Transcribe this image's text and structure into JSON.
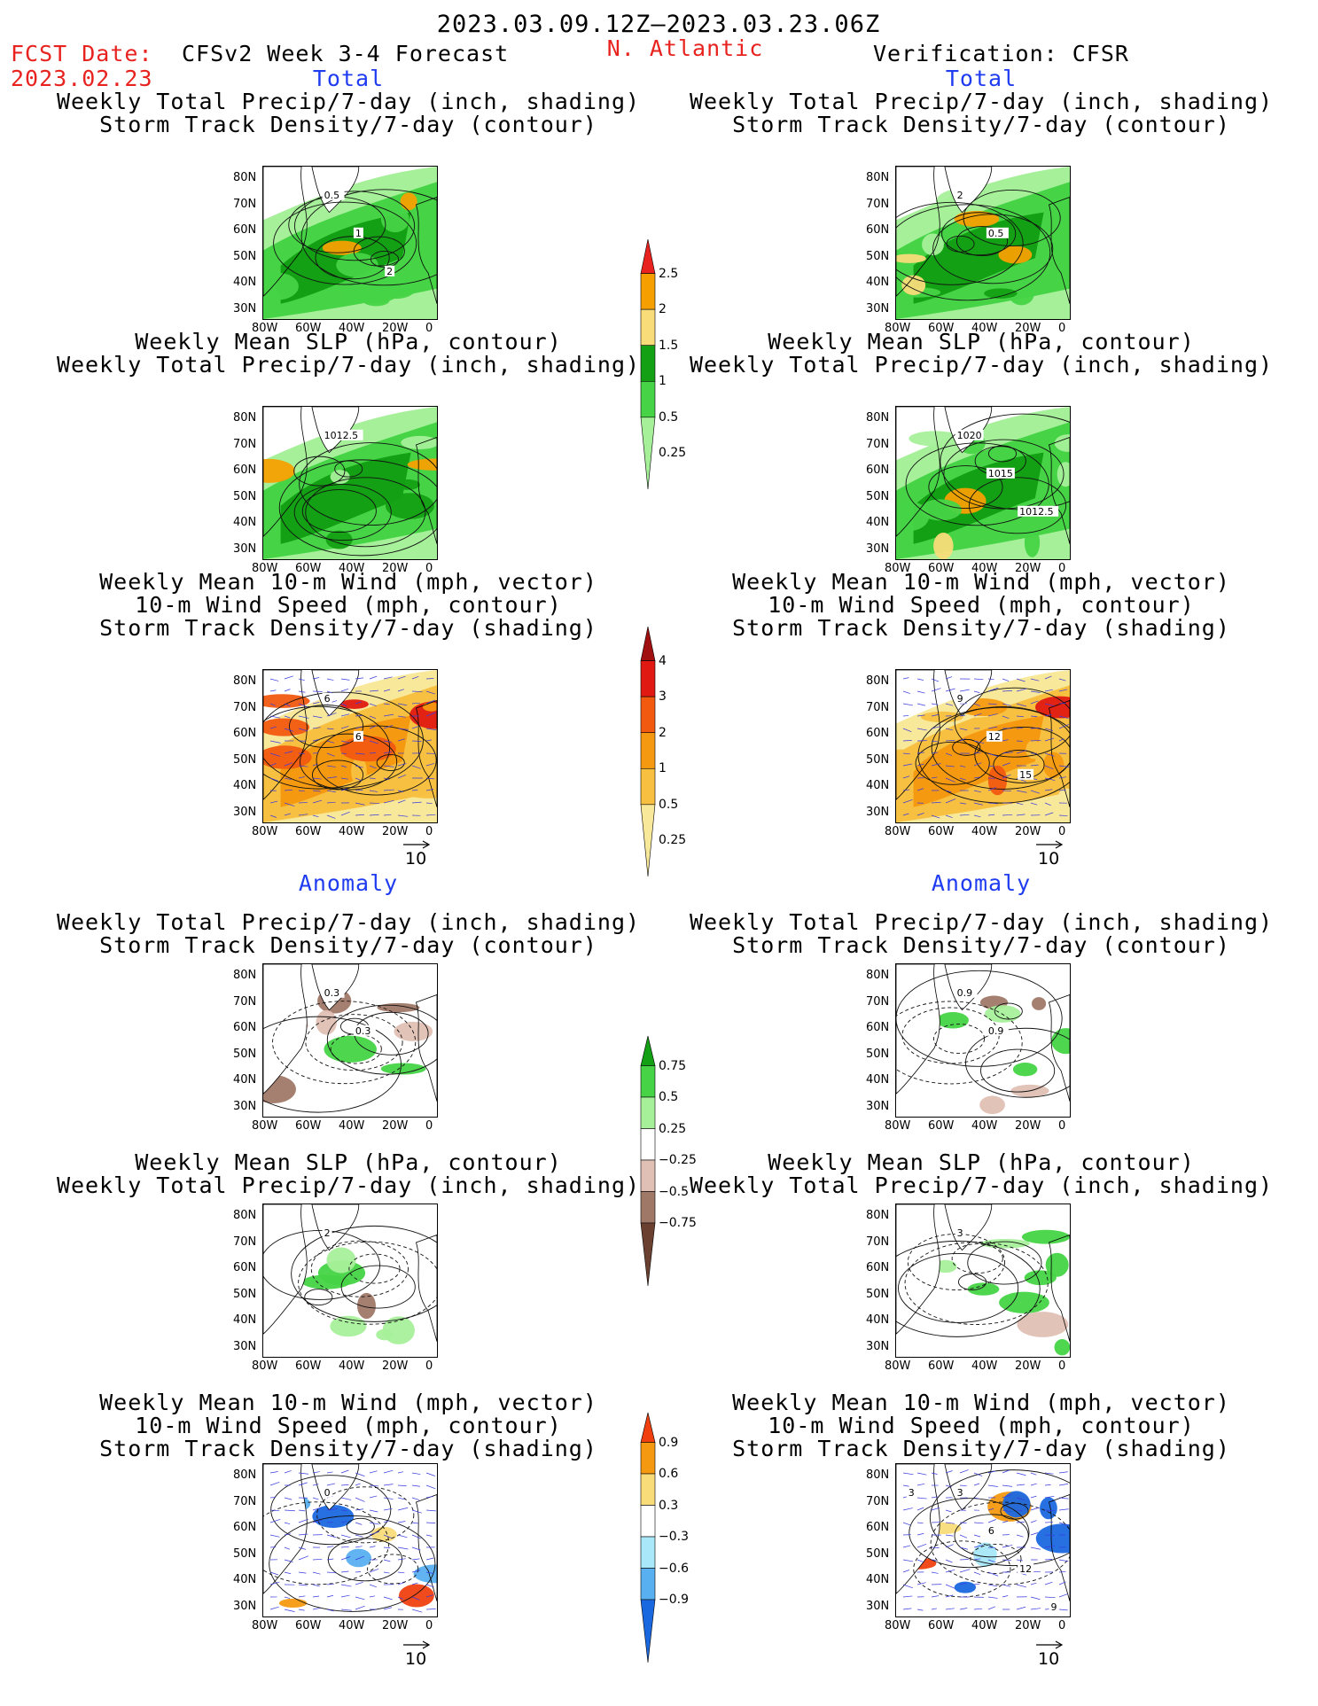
{
  "header": {
    "date_range": "2023.03.09.12Z–2023.03.23.06Z",
    "fcst_label": "FCST Date:",
    "fcst_date": "2023.02.23",
    "model": "CFSv2 Week 3-4 Forecast",
    "region": "N. Atlantic",
    "verification": "Verification: CFSR"
  },
  "sections": {
    "total": "Total",
    "anomaly": "Anomaly"
  },
  "titles": {
    "precip_storm": [
      "Weekly Total Precip/7-day (inch, shading)",
      "Storm Track Density/7-day (contour)"
    ],
    "slp_precip": [
      "Weekly Mean SLP (hPa, contour)",
      "Weekly Total Precip/7-day (inch, shading)"
    ],
    "wind_storm": [
      "Weekly Mean 10-m Wind (mph, vector)",
      "10-m Wind Speed (mph, contour)",
      "Storm Track Density/7-day (shading)"
    ]
  },
  "axes": {
    "lat_ticks": [
      "80N",
      "70N",
      "60N",
      "50N",
      "40N",
      "30N"
    ],
    "lon_ticks": [
      "80W",
      "60W",
      "40W",
      "20W",
      "0"
    ]
  },
  "vector_ref": "10",
  "colorbars": {
    "precip_total": {
      "labels": [
        "2.5",
        "2",
        "1.5",
        "1",
        "0.5",
        "0.25"
      ],
      "colors": [
        "#e8231f",
        "#f5a000",
        "#f8dc7a",
        "#14a014",
        "#46d446",
        "#a6f09a"
      ]
    },
    "storm_total": {
      "labels": [
        "4",
        "3",
        "2",
        "1",
        "0.5",
        "0.25"
      ],
      "colors": [
        "#a01010",
        "#e01a12",
        "#f25a10",
        "#f59a10",
        "#f8c040",
        "#f8e89a"
      ]
    },
    "precip_anom": {
      "labels": [
        "0.75",
        "0.5",
        "0.25",
        "−0.25",
        "−0.5",
        "−0.75"
      ],
      "colors": [
        "#14a014",
        "#46d446",
        "#a6f09a",
        "#ffffff",
        "#e0c0b4",
        "#a07868",
        "#6a4030"
      ]
    },
    "storm_anom": {
      "labels": [
        "0.9",
        "0.6",
        "0.3",
        "−0.3",
        "−0.6",
        "−0.9"
      ],
      "colors": [
        "#f04010",
        "#f59a10",
        "#f8dc7a",
        "#ffffff",
        "#a8e8f8",
        "#58b0f0",
        "#1a68e0"
      ]
    }
  },
  "panel_labels": {
    "p1": [
      "0.5",
      "1",
      "2"
    ],
    "p2": [
      "1012.5"
    ],
    "p3": [
      "6",
      "6"
    ],
    "q1": [
      "2",
      "0.5"
    ],
    "q2": [
      "1020",
      "1015",
      "1012.5"
    ],
    "q3": [
      "9",
      "12",
      "15"
    ],
    "p4": [
      "0.3",
      "0.3"
    ],
    "p5": [
      "2"
    ],
    "p6": [
      "0"
    ],
    "q4": [
      "0.9",
      "0.9"
    ],
    "q5": [
      "3"
    ],
    "q6": [
      "3",
      "6",
      "12",
      "9",
      "3"
    ]
  }
}
